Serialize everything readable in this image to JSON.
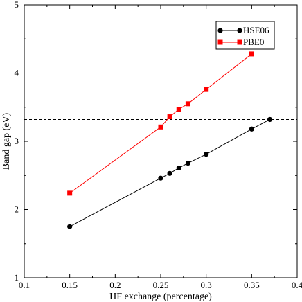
{
  "chart_data": {
    "type": "line",
    "title": "",
    "xlabel": "HF exchange (percentage)",
    "ylabel": "Band gap (eV)",
    "xlim": [
      0.1,
      0.4
    ],
    "ylim": [
      1,
      5
    ],
    "xticks": [
      0.1,
      0.15,
      0.2,
      0.25,
      0.3,
      0.35,
      0.4
    ],
    "xtick_labels": [
      "0.1",
      "0.15",
      "0.2",
      "0.25",
      "0.3",
      "0.35",
      "0.4"
    ],
    "yticks": [
      1,
      2,
      3,
      4,
      5
    ],
    "ytick_labels": [
      "1",
      "2",
      "3",
      "4",
      "5"
    ],
    "grid": false,
    "legend_position": "top-right",
    "reference_line": {
      "y": 3.32,
      "style": "dashed",
      "color": "#000000"
    },
    "series": [
      {
        "name": "HSE06",
        "color": "#000000",
        "marker": "circle",
        "x": [
          0.15,
          0.25,
          0.26,
          0.27,
          0.28,
          0.3,
          0.35,
          0.37
        ],
        "y": [
          1.75,
          2.46,
          2.53,
          2.61,
          2.68,
          2.81,
          3.18,
          3.32
        ]
      },
      {
        "name": "PBE0",
        "color": "#ff0000",
        "marker": "square",
        "x": [
          0.15,
          0.25,
          0.26,
          0.27,
          0.28,
          0.3,
          0.35
        ],
        "y": [
          2.24,
          3.21,
          3.36,
          3.47,
          3.55,
          3.76,
          4.28
        ]
      }
    ]
  }
}
